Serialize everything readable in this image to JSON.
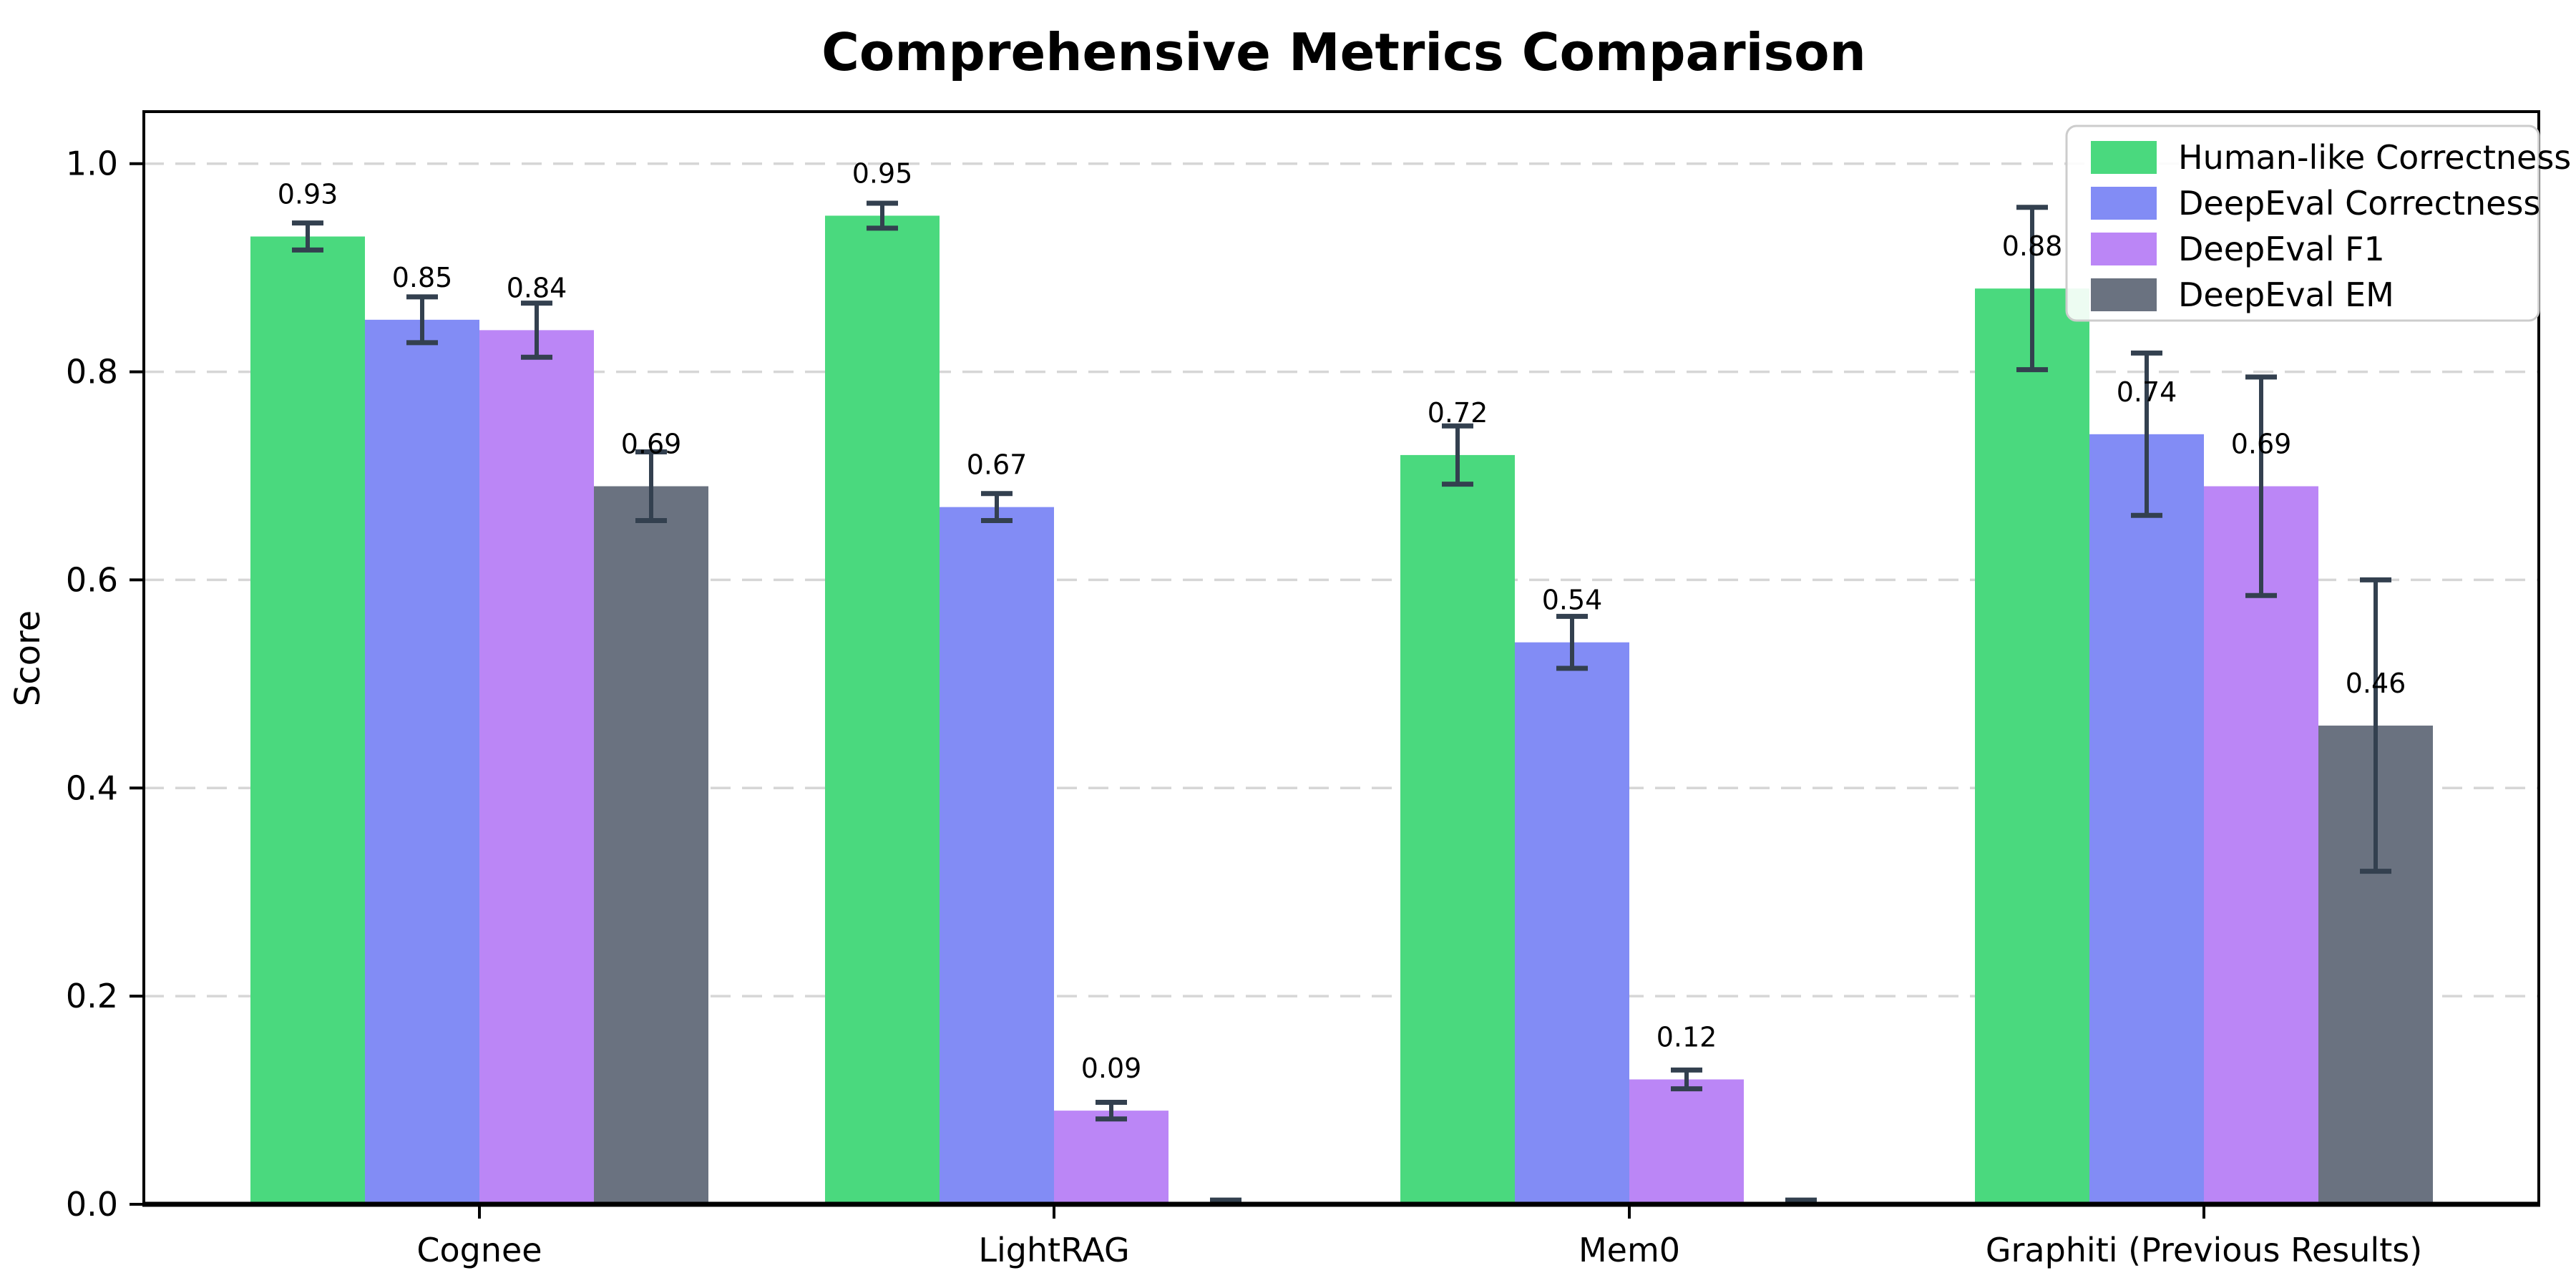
{
  "page": {
    "background": "#ffffff"
  },
  "chart_data": {
    "type": "bar",
    "title": "Comprehensive Metrics Comparison",
    "xlabel": "",
    "ylabel": "Score",
    "categories": [
      "Cognee",
      "LightRAG",
      "Mem0",
      "Graphiti (Previous Results)"
    ],
    "ytick_labels": [
      "0.0",
      "0.2",
      "0.4",
      "0.6",
      "0.8",
      "1.0"
    ],
    "yticks": [
      0.0,
      0.2,
      0.4,
      0.6,
      0.8,
      1.0
    ],
    "ylim": [
      0,
      1.05
    ],
    "grid": "horizontal-dashed",
    "legend_position": "upper-right",
    "series": [
      {
        "name": "Human-like Correctness",
        "color": "#4ad97e",
        "values": [
          0.93,
          0.95,
          0.72,
          0.88
        ],
        "errors": [
          0.013,
          0.012,
          0.028,
          0.078
        ],
        "value_labels": [
          "0.93",
          "0.95",
          "0.72",
          "0.88"
        ]
      },
      {
        "name": "DeepEval Correctness",
        "color": "#828cf5",
        "values": [
          0.85,
          0.67,
          0.54,
          0.74
        ],
        "errors": [
          0.022,
          0.013,
          0.025,
          0.078
        ],
        "value_labels": [
          "0.85",
          "0.67",
          "0.54",
          "0.74"
        ]
      },
      {
        "name": "DeepEval F1",
        "color": "#bb86f6",
        "values": [
          0.84,
          0.09,
          0.12,
          0.69
        ],
        "errors": [
          0.026,
          0.008,
          0.009,
          0.105
        ],
        "value_labels": [
          "0.84",
          "0.09",
          "0.12",
          "0.69"
        ]
      },
      {
        "name": "DeepEval EM",
        "color": "#6a7280",
        "values": [
          0.69,
          0.0,
          0.0,
          0.46
        ],
        "errors": [
          0.033,
          0.004,
          0.004,
          0.14
        ],
        "value_labels": [
          "0.69",
          "",
          "",
          "0.46"
        ]
      }
    ],
    "colors": {
      "error_bar": "#33404f",
      "axis": "#000000",
      "grid": "#d6d6d6",
      "tick_label": "#000000",
      "title": "#000000",
      "legend_border": "#cccccc",
      "legend_background": "#ffffff"
    }
  }
}
